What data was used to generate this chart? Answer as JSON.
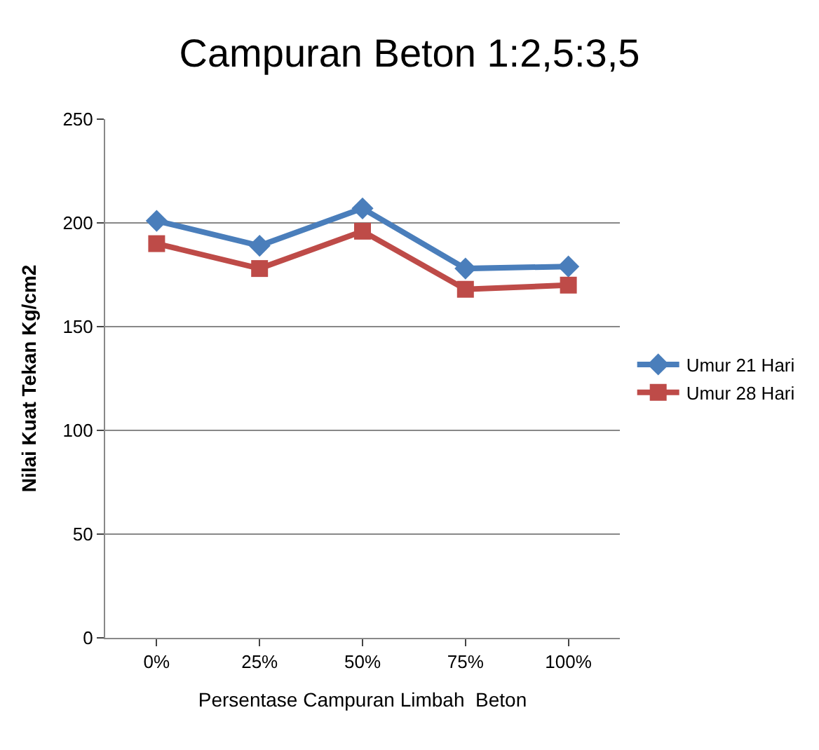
{
  "chart_data": {
    "type": "line",
    "title": "Campuran Beton 1:2,5:3,5",
    "xlabel": "Persentase Campuran Limbah  Beton",
    "ylabel": "Nilai Kuat Tekan Kg/cm2",
    "categories": [
      "0%",
      "25%",
      "50%",
      "75%",
      "100%"
    ],
    "series": [
      {
        "name": "Umur 21 Hari",
        "color": "#4a7ebb",
        "marker": "diamond",
        "values": [
          201,
          189,
          207,
          178,
          179
        ]
      },
      {
        "name": "Umur 28 Hari",
        "color": "#be4b48",
        "marker": "square",
        "values": [
          190,
          178,
          196,
          168,
          170
        ]
      }
    ],
    "ylim": [
      0,
      250
    ],
    "yticks": [
      0,
      50,
      100,
      150,
      200,
      250
    ],
    "grid": "y",
    "legend": "right"
  }
}
